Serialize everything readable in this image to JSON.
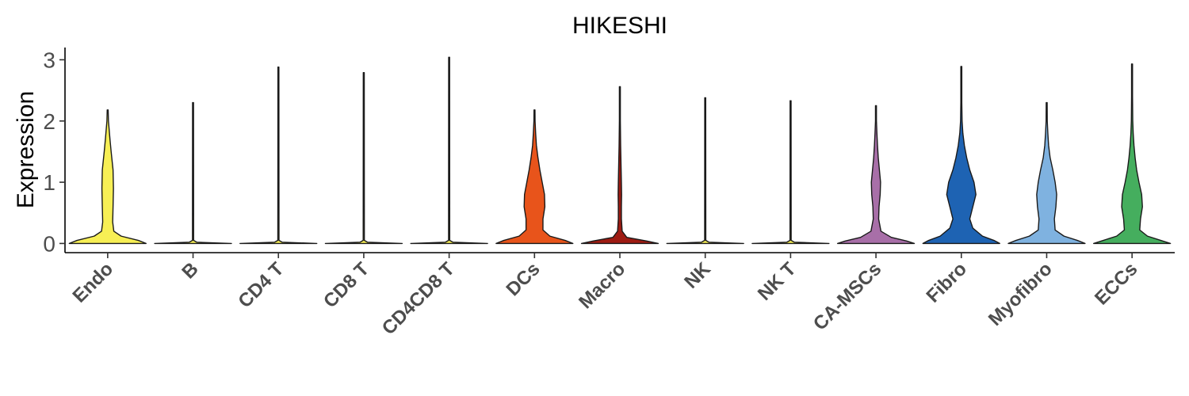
{
  "chart_data": {
    "type": "violin",
    "title": "HIKESHI",
    "xlabel": "",
    "ylabel": "Expression",
    "ylim": [
      -0.15,
      3.2
    ],
    "yticks": [
      0,
      1,
      2,
      3
    ],
    "grid": false,
    "legend": "none",
    "categories": [
      "Endo",
      "B",
      "CD4 T",
      "CD8 T",
      "CD4CD8 T",
      "DCs",
      "Macro",
      "NK",
      "NK T",
      "CA-MSCs",
      "Fibro",
      "Myofibro",
      "ECCs"
    ],
    "colors": [
      "#F7EF55",
      "#F7EF55",
      "#F7EF55",
      "#F7EF55",
      "#F7EF55",
      "#E8541B",
      "#9E1B12",
      "#F7EF55",
      "#F7EF55",
      "#A86FA8",
      "#1E63B3",
      "#7FB2E0",
      "#45AE5E"
    ],
    "max_expression": [
      2.18,
      2.3,
      2.88,
      2.79,
      3.04,
      2.18,
      2.56,
      2.38,
      2.33,
      2.25,
      2.89,
      2.3,
      2.93
    ],
    "density_profiles": [
      [
        [
          0,
          1.0
        ],
        [
          0.05,
          0.8
        ],
        [
          0.12,
          0.35
        ],
        [
          0.2,
          0.16
        ],
        [
          0.35,
          0.13
        ],
        [
          0.6,
          0.14
        ],
        [
          0.9,
          0.15
        ],
        [
          1.2,
          0.14
        ],
        [
          1.5,
          0.09
        ],
        [
          1.7,
          0.06
        ],
        [
          1.85,
          0.04
        ],
        [
          2.0,
          0.02
        ],
        [
          2.18,
          0.005
        ]
      ],
      [
        [
          0,
          1.0
        ],
        [
          0.02,
          0.1
        ],
        [
          0.05,
          0.015
        ],
        [
          2.3,
          0.01
        ]
      ],
      [
        [
          0,
          1.0
        ],
        [
          0.02,
          0.1
        ],
        [
          0.05,
          0.015
        ],
        [
          2.88,
          0.01
        ]
      ],
      [
        [
          0,
          1.0
        ],
        [
          0.02,
          0.1
        ],
        [
          0.05,
          0.015
        ],
        [
          2.79,
          0.01
        ]
      ],
      [
        [
          0,
          1.0
        ],
        [
          0.02,
          0.1
        ],
        [
          0.05,
          0.015
        ],
        [
          3.04,
          0.01
        ]
      ],
      [
        [
          0,
          1.0
        ],
        [
          0.05,
          0.8
        ],
        [
          0.12,
          0.4
        ],
        [
          0.22,
          0.22
        ],
        [
          0.4,
          0.22
        ],
        [
          0.6,
          0.27
        ],
        [
          0.8,
          0.26
        ],
        [
          1.0,
          0.2
        ],
        [
          1.2,
          0.14
        ],
        [
          1.4,
          0.09
        ],
        [
          1.6,
          0.05
        ],
        [
          1.8,
          0.03
        ],
        [
          2.0,
          0.015
        ],
        [
          2.18,
          0.005
        ]
      ],
      [
        [
          0,
          1.0
        ],
        [
          0.04,
          0.7
        ],
        [
          0.1,
          0.18
        ],
        [
          0.2,
          0.06
        ],
        [
          0.4,
          0.04
        ],
        [
          0.6,
          0.04
        ],
        [
          0.8,
          0.045
        ],
        [
          1.0,
          0.04
        ],
        [
          1.3,
          0.03
        ],
        [
          1.6,
          0.02
        ],
        [
          2.0,
          0.01
        ],
        [
          2.56,
          0.005
        ]
      ],
      [
        [
          0,
          1.0
        ],
        [
          0.02,
          0.1
        ],
        [
          0.05,
          0.015
        ],
        [
          2.38,
          0.01
        ]
      ],
      [
        [
          0,
          1.0
        ],
        [
          0.02,
          0.1
        ],
        [
          0.05,
          0.015
        ],
        [
          2.33,
          0.01
        ]
      ],
      [
        [
          0,
          1.0
        ],
        [
          0.04,
          0.8
        ],
        [
          0.1,
          0.4
        ],
        [
          0.2,
          0.13
        ],
        [
          0.4,
          0.07
        ],
        [
          0.6,
          0.08
        ],
        [
          0.8,
          0.11
        ],
        [
          1.0,
          0.12
        ],
        [
          1.2,
          0.09
        ],
        [
          1.4,
          0.06
        ],
        [
          1.6,
          0.04
        ],
        [
          1.8,
          0.025
        ],
        [
          2.0,
          0.012
        ],
        [
          2.25,
          0.005
        ]
      ],
      [
        [
          0,
          1.0
        ],
        [
          0.05,
          0.85
        ],
        [
          0.12,
          0.55
        ],
        [
          0.25,
          0.3
        ],
        [
          0.4,
          0.22
        ],
        [
          0.6,
          0.3
        ],
        [
          0.8,
          0.38
        ],
        [
          1.0,
          0.33
        ],
        [
          1.2,
          0.22
        ],
        [
          1.4,
          0.14
        ],
        [
          1.6,
          0.08
        ],
        [
          1.8,
          0.04
        ],
        [
          2.0,
          0.02
        ],
        [
          2.3,
          0.01
        ],
        [
          2.89,
          0.005
        ]
      ],
      [
        [
          0,
          1.0
        ],
        [
          0.05,
          0.8
        ],
        [
          0.12,
          0.45
        ],
        [
          0.22,
          0.22
        ],
        [
          0.4,
          0.2
        ],
        [
          0.6,
          0.24
        ],
        [
          0.8,
          0.26
        ],
        [
          1.0,
          0.22
        ],
        [
          1.2,
          0.16
        ],
        [
          1.4,
          0.09
        ],
        [
          1.6,
          0.05
        ],
        [
          1.8,
          0.03
        ],
        [
          2.0,
          0.015
        ],
        [
          2.3,
          0.005
        ]
      ],
      [
        [
          0,
          1.0
        ],
        [
          0.05,
          0.75
        ],
        [
          0.12,
          0.4
        ],
        [
          0.22,
          0.2
        ],
        [
          0.4,
          0.22
        ],
        [
          0.6,
          0.27
        ],
        [
          0.8,
          0.25
        ],
        [
          1.0,
          0.18
        ],
        [
          1.2,
          0.12
        ],
        [
          1.4,
          0.08
        ],
        [
          1.6,
          0.05
        ],
        [
          1.8,
          0.03
        ],
        [
          2.0,
          0.018
        ],
        [
          2.4,
          0.01
        ],
        [
          2.93,
          0.005
        ]
      ]
    ]
  }
}
